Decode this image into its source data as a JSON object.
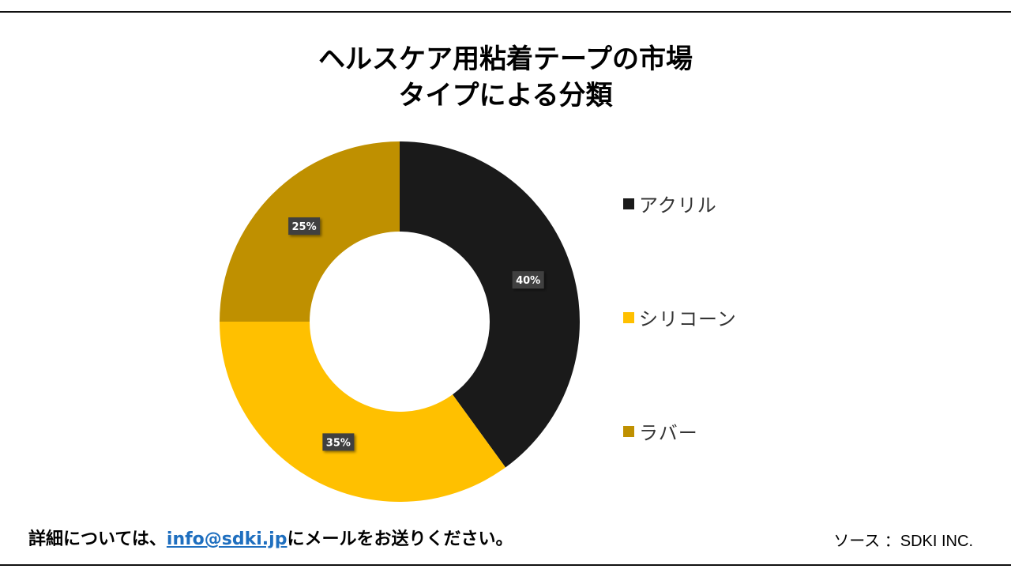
{
  "title": {
    "line1": "ヘルスケア用粘着テープの市場",
    "line2": "タイプによる分類"
  },
  "chart_data": {
    "type": "pie",
    "style": "donut",
    "categories": [
      "アクリル",
      "シリコーン",
      "ラバー"
    ],
    "values": [
      40,
      35,
      25
    ],
    "data_labels": [
      "40%",
      "35%",
      "25%"
    ],
    "colors": [
      "#1a1a1a",
      "#ffc000",
      "#bf9000"
    ],
    "legend_position": "right"
  },
  "footer": {
    "prefix": "詳細については、",
    "email": "info@sdki.jp",
    "suffix": "にメールをお送りください。",
    "source": "ソース ：SDKI INC."
  }
}
